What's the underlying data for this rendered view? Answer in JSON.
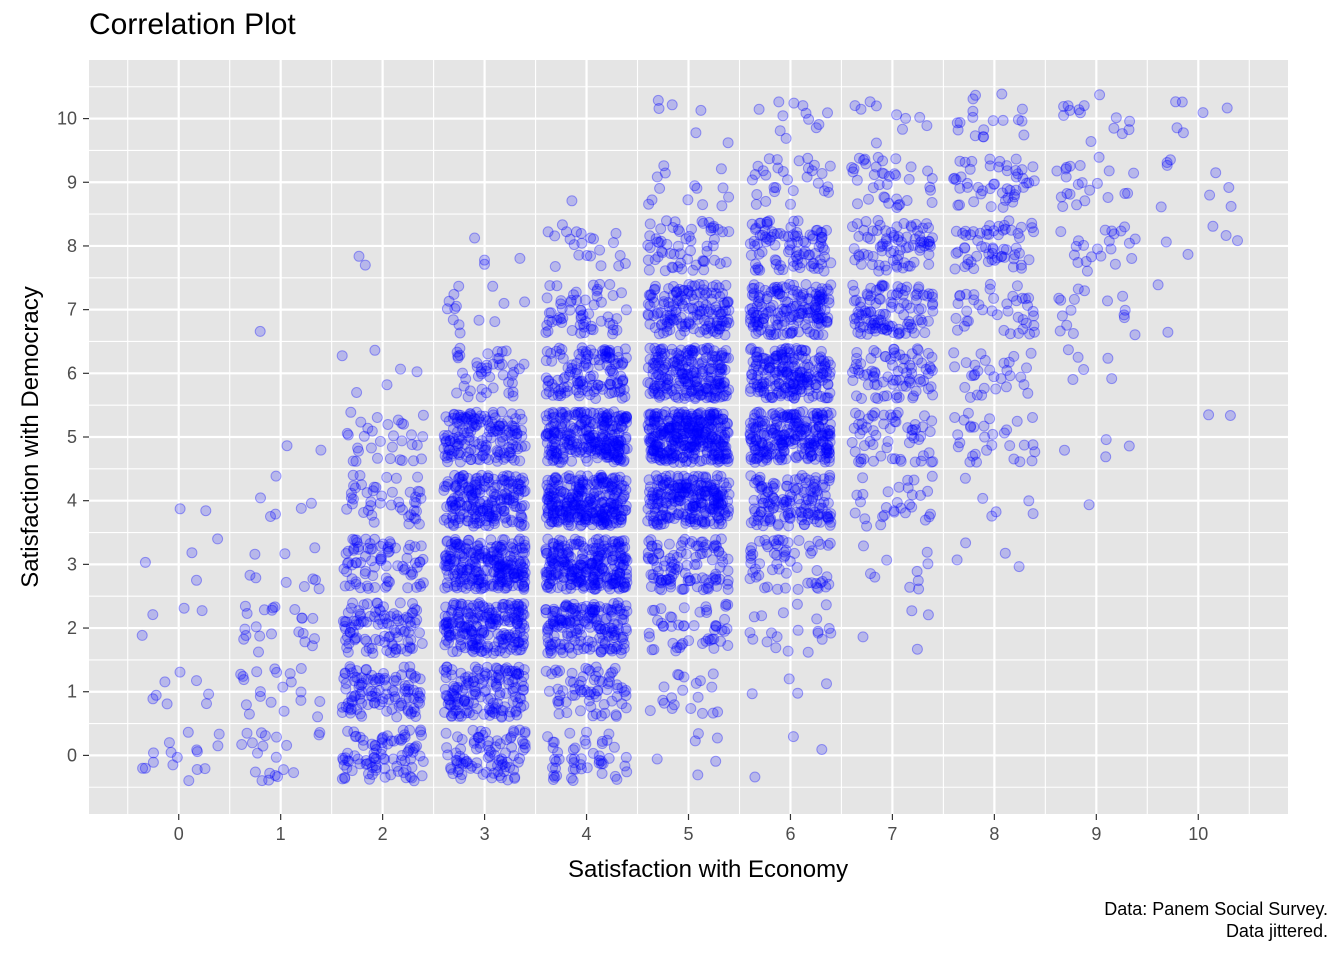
{
  "chart_data": {
    "type": "scatter",
    "title": "Correlation Plot",
    "xlabel": "Satisfaction with Economy",
    "ylabel": "Satisfaction with Democracy",
    "caption": [
      "Data: Panem Social Survey.",
      "Data jittered."
    ],
    "x_ticks": [
      0,
      1,
      2,
      3,
      4,
      5,
      6,
      7,
      8,
      9,
      10
    ],
    "y_ticks": [
      0,
      1,
      2,
      3,
      4,
      5,
      6,
      7,
      8,
      9,
      10
    ],
    "xlim": [
      -0.88,
      10.88
    ],
    "ylim": [
      -0.92,
      10.92
    ],
    "jitter": 0.4,
    "grid": true,
    "legend": "none",
    "point_color": "#0000ff",
    "point_opacity": 0.2,
    "panel_background": "#e5e5e5",
    "grid_color": "#ffffff",
    "cell_counts": {
      "x": [
        0,
        1,
        2,
        3,
        4,
        5,
        6,
        7,
        8,
        9,
        10
      ],
      "y": [
        10,
        9,
        8,
        7,
        6,
        5,
        4,
        3,
        2,
        1,
        0
      ],
      "counts": [
        [
          0,
          0,
          0,
          0,
          0,
          6,
          12,
          10,
          18,
          14,
          6
        ],
        [
          0,
          0,
          0,
          0,
          1,
          14,
          30,
          38,
          48,
          22,
          8
        ],
        [
          0,
          0,
          2,
          4,
          22,
          60,
          95,
          80,
          60,
          22,
          5
        ],
        [
          0,
          1,
          0,
          14,
          60,
          150,
          170,
          110,
          40,
          16,
          2
        ],
        [
          0,
          0,
          6,
          45,
          130,
          220,
          200,
          80,
          30,
          6,
          0
        ],
        [
          0,
          2,
          32,
          160,
          260,
          330,
          240,
          60,
          30,
          4,
          2
        ],
        [
          2,
          6,
          45,
          200,
          280,
          240,
          140,
          30,
          6,
          1,
          0
        ],
        [
          4,
          10,
          80,
          240,
          260,
          110,
          60,
          10,
          4,
          0,
          0
        ],
        [
          4,
          22,
          100,
          210,
          180,
          50,
          20,
          4,
          0,
          0,
          0
        ],
        [
          8,
          20,
          110,
          150,
          70,
          20,
          4,
          0,
          0,
          0,
          0
        ],
        [
          16,
          20,
          90,
          90,
          50,
          6,
          3,
          0,
          0,
          0,
          0
        ]
      ]
    }
  }
}
